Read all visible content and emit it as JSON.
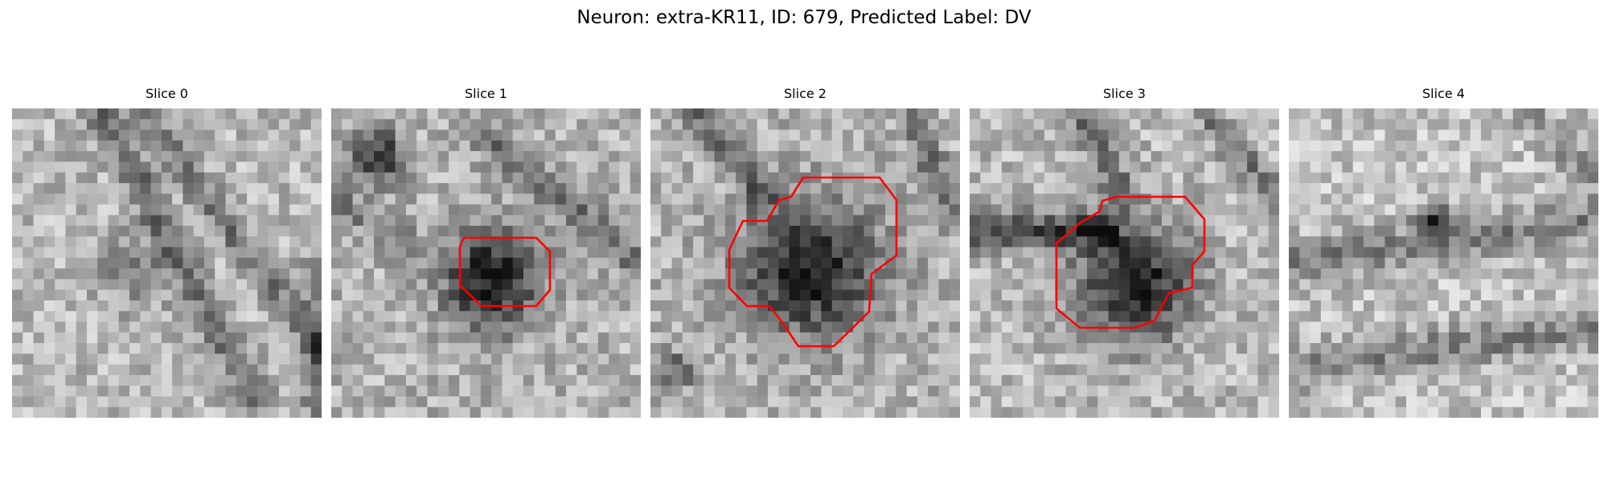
{
  "figure": {
    "title": "Neuron: extra-KR11, ID: 679, Predicted Label: DV"
  },
  "colors": {
    "contour": "#ff0000",
    "dark_pixel": "#141414",
    "light_pixel": "#f0f0f0"
  },
  "panels": [
    {
      "title": "Slice 0",
      "seed": 11,
      "has_contour": false
    },
    {
      "title": "Slice 1",
      "seed": 23,
      "has_contour": true
    },
    {
      "title": "Slice 2",
      "seed": 37,
      "has_contour": true
    },
    {
      "title": "Slice 3",
      "seed": 51,
      "has_contour": true
    },
    {
      "title": "Slice 4",
      "seed": 67,
      "has_contour": false
    }
  ]
}
